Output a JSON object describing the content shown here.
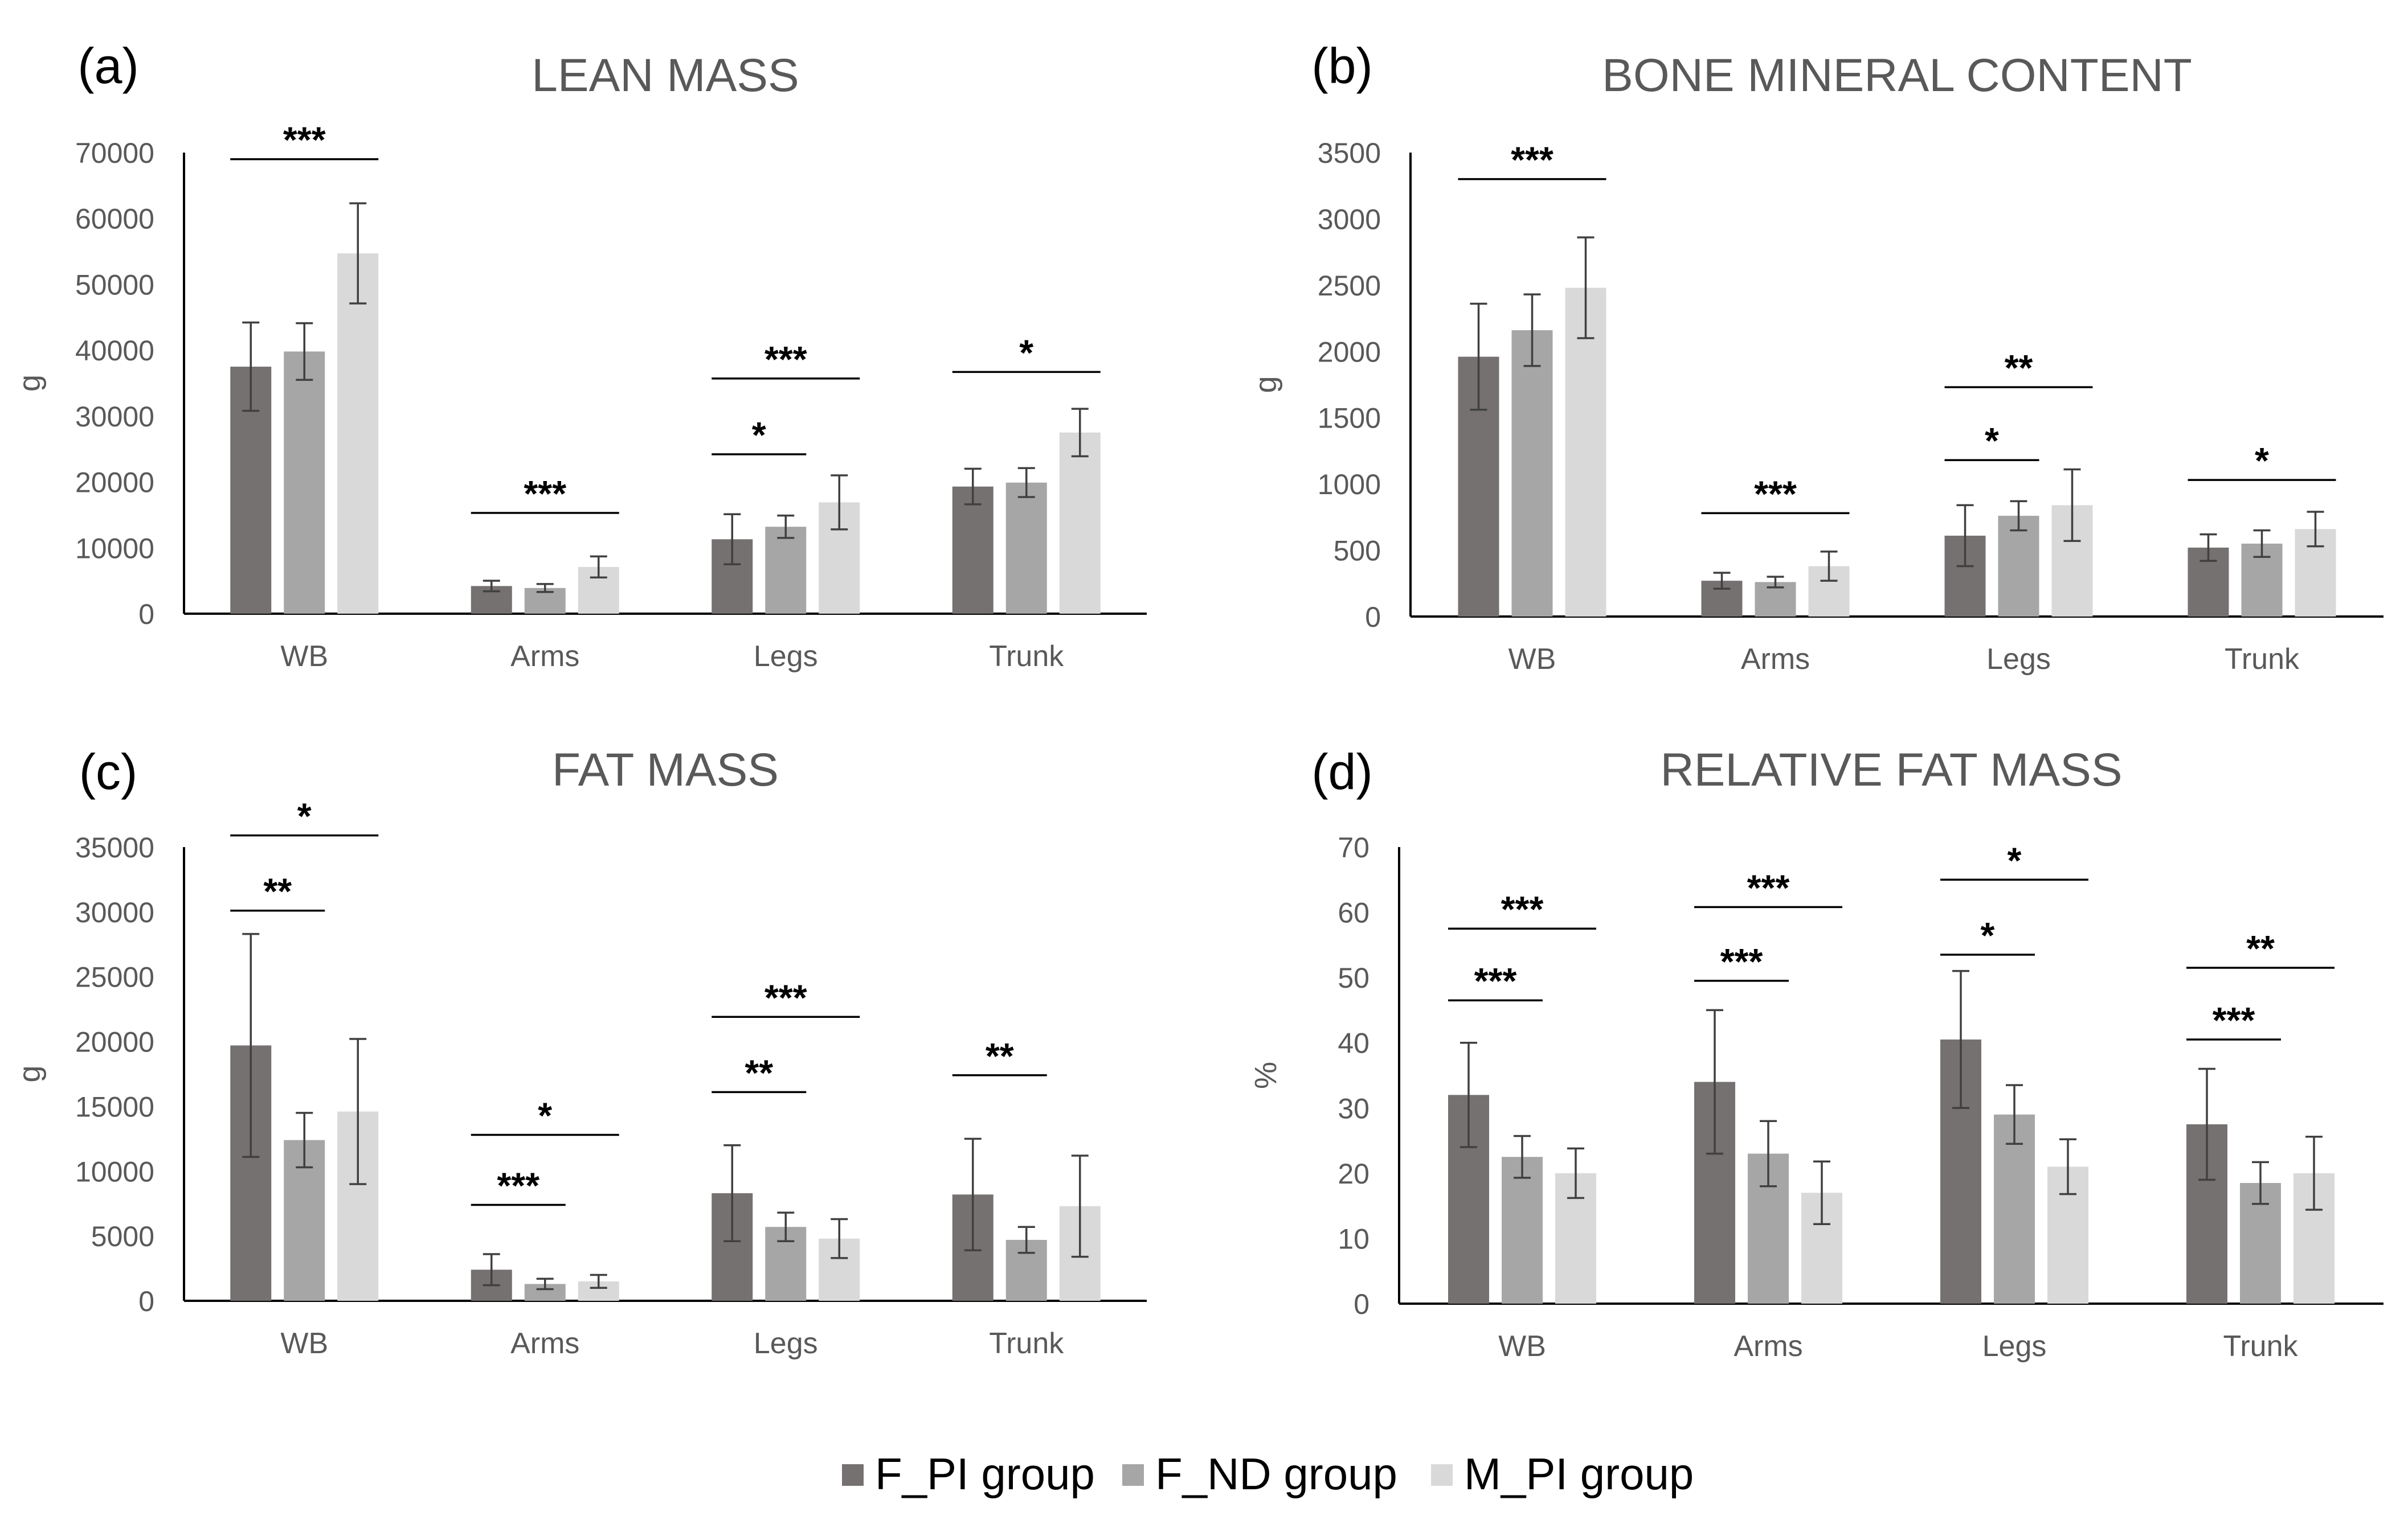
{
  "legend": {
    "items": [
      {
        "label": "F_PI group",
        "color": "#767171"
      },
      {
        "label": "F_ND group",
        "color": "#a6a6a6"
      },
      {
        "label": "M_PI group",
        "color": "#d9d9d9"
      }
    ],
    "placement": "bottom-center"
  },
  "chart_data": [
    {
      "type": "bar",
      "panel_label": "(a)",
      "title": "LEAN MASS",
      "ylabel": "g",
      "ylim": [
        0,
        70000
      ],
      "yticks": [
        0,
        10000,
        20000,
        30000,
        40000,
        50000,
        60000,
        70000
      ],
      "categories": [
        "WB",
        "Arms",
        "Legs",
        "Trunk"
      ],
      "series": [
        {
          "name": "F_PI group",
          "values": [
            37500,
            4200,
            11300,
            19300
          ],
          "errors": [
            6700,
            800,
            3800,
            2700
          ]
        },
        {
          "name": "F_ND group",
          "values": [
            39800,
            3900,
            13200,
            19900
          ],
          "errors": [
            4300,
            600,
            1700,
            2200
          ]
        },
        {
          "name": "M_PI group",
          "values": [
            54700,
            7100,
            16900,
            27500
          ],
          "errors": [
            7600,
            1600,
            4100,
            3600
          ]
        }
      ],
      "annotations": [
        {
          "category": "WB",
          "from": 0,
          "to": 2,
          "text": "***",
          "y": 69000
        },
        {
          "category": "Arms",
          "from": 0,
          "to": 2,
          "text": "***",
          "y": 15300
        },
        {
          "category": "Legs",
          "from": 0,
          "to": 1,
          "text": "*",
          "y": 24200
        },
        {
          "category": "Legs",
          "from": 0,
          "to": 2,
          "text": "***",
          "y": 35700
        },
        {
          "category": "Trunk",
          "from": 0,
          "to": 2,
          "text": "*",
          "y": 36700
        }
      ],
      "grid": false
    },
    {
      "type": "bar",
      "panel_label": "(b)",
      "title": "BONE MINERAL CONTENT",
      "ylabel": "g",
      "ylim": [
        0,
        3500
      ],
      "yticks": [
        0,
        500,
        1000,
        1500,
        2000,
        2500,
        3000,
        3500
      ],
      "categories": [
        "WB",
        "Arms",
        "Legs",
        "Trunk"
      ],
      "series": [
        {
          "name": "F_PI group",
          "values": [
            1960,
            270,
            610,
            520
          ],
          "errors": [
            400,
            60,
            230,
            100
          ]
        },
        {
          "name": "F_ND group",
          "values": [
            2160,
            260,
            760,
            550
          ],
          "errors": [
            270,
            40,
            110,
            100
          ]
        },
        {
          "name": "M_PI group",
          "values": [
            2480,
            380,
            840,
            660
          ],
          "errors": [
            380,
            110,
            270,
            130
          ]
        }
      ],
      "annotations": [
        {
          "category": "WB",
          "from": 0,
          "to": 2,
          "text": "***",
          "y": 3300
        },
        {
          "category": "Arms",
          "from": 0,
          "to": 2,
          "text": "***",
          "y": 780
        },
        {
          "category": "Legs",
          "from": 0,
          "to": 1,
          "text": "*",
          "y": 1180
        },
        {
          "category": "Legs",
          "from": 0,
          "to": 2,
          "text": "**",
          "y": 1730
        },
        {
          "category": "Trunk",
          "from": 0,
          "to": 2,
          "text": "*",
          "y": 1030
        }
      ],
      "grid": false
    },
    {
      "type": "bar",
      "panel_label": "(c)",
      "title": "FAT MASS",
      "ylabel": "g",
      "ylim": [
        0,
        35000
      ],
      "yticks": [
        0,
        5000,
        10000,
        15000,
        20000,
        25000,
        30000,
        35000
      ],
      "categories": [
        "WB",
        "Arms",
        "Legs",
        "Trunk"
      ],
      "series": [
        {
          "name": "F_PI group",
          "values": [
            19700,
            2400,
            8300,
            8200
          ],
          "errors": [
            8600,
            1200,
            3700,
            4300
          ]
        },
        {
          "name": "F_ND group",
          "values": [
            12400,
            1300,
            5700,
            4700
          ],
          "errors": [
            2100,
            400,
            1100,
            1000
          ]
        },
        {
          "name": "M_PI group",
          "values": [
            14600,
            1500,
            4800,
            7300
          ],
          "errors": [
            5600,
            500,
            1500,
            3900
          ]
        }
      ],
      "annotations": [
        {
          "category": "WB",
          "from": 0,
          "to": 1,
          "text": "**",
          "y": 30100
        },
        {
          "category": "WB",
          "from": 0,
          "to": 2,
          "text": "*",
          "y": 35900
        },
        {
          "category": "Arms",
          "from": 0,
          "to": 1,
          "text": "***",
          "y": 7400
        },
        {
          "category": "Arms",
          "from": 0,
          "to": 2,
          "text": "*",
          "y": 12800
        },
        {
          "category": "Legs",
          "from": 0,
          "to": 1,
          "text": "**",
          "y": 16100
        },
        {
          "category": "Legs",
          "from": 0,
          "to": 2,
          "text": "***",
          "y": 21900
        },
        {
          "category": "Trunk",
          "from": 0,
          "to": 1,
          "text": "**",
          "y": 17400
        }
      ],
      "grid": false
    },
    {
      "type": "bar",
      "panel_label": "(d)",
      "title": "RELATIVE FAT MASS",
      "ylabel": "%",
      "ylim": [
        0,
        70
      ],
      "yticks": [
        0,
        10,
        20,
        30,
        40,
        50,
        60,
        70
      ],
      "categories": [
        "WB",
        "Arms",
        "Legs",
        "Trunk"
      ],
      "series": [
        {
          "name": "F_PI group",
          "values": [
            32,
            34,
            40.5,
            27.5
          ],
          "errors": [
            8,
            11,
            10.5,
            8.5
          ]
        },
        {
          "name": "F_ND group",
          "values": [
            22.5,
            23,
            29,
            18.5
          ],
          "errors": [
            3.2,
            5,
            4.5,
            3.2
          ]
        },
        {
          "name": "M_PI group",
          "values": [
            20,
            17,
            21,
            20
          ],
          "errors": [
            3.8,
            4.8,
            4.2,
            5.6
          ]
        }
      ],
      "annotations": [
        {
          "category": "WB",
          "from": 0,
          "to": 1,
          "text": "***",
          "y": 46.5
        },
        {
          "category": "WB",
          "from": 0,
          "to": 2,
          "text": "***",
          "y": 57.5
        },
        {
          "category": "Arms",
          "from": 0,
          "to": 1,
          "text": "***",
          "y": 49.5
        },
        {
          "category": "Arms",
          "from": 0,
          "to": 2,
          "text": "***",
          "y": 60.8
        },
        {
          "category": "Legs",
          "from": 0,
          "to": 1,
          "text": "*",
          "y": 53.5
        },
        {
          "category": "Legs",
          "from": 0,
          "to": 2,
          "text": "*",
          "y": 65
        },
        {
          "category": "Trunk",
          "from": 0,
          "to": 1,
          "text": "***",
          "y": 40.5
        },
        {
          "category": "Trunk",
          "from": 0,
          "to": 2,
          "text": "**",
          "y": 51.5
        }
      ],
      "grid": false
    }
  ]
}
